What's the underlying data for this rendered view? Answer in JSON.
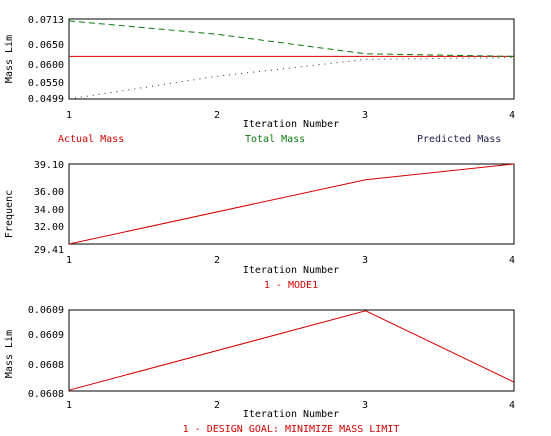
{
  "colors": {
    "red": "#d40000",
    "green": "#0a7a0a",
    "black": "#000000",
    "navy": "#202050"
  },
  "chart_data": [
    {
      "type": "line",
      "title": "",
      "xlabel": "Iteration Number",
      "ylabel": "Mass Lim",
      "xlim": [
        1,
        4
      ],
      "ylim": [
        0.0499,
        0.0713
      ],
      "x_ticks": [
        "1",
        "2",
        "3",
        "4"
      ],
      "y_ticks": [
        "0.0499",
        "0.0550",
        "0.0600",
        "0.0650",
        "0.0713"
      ],
      "legend_placement": "bottom",
      "series": [
        {
          "name": "Actual Mass",
          "color": "#d40000",
          "style": "solid",
          "x": [
            1,
            2,
            3,
            4
          ],
          "values": [
            0.0613,
            0.0613,
            0.0613,
            0.0613
          ]
        },
        {
          "name": "Total Mass",
          "color": "#0a7a0a",
          "style": "dashed",
          "x": [
            1,
            2,
            3,
            4
          ],
          "values": [
            0.0708,
            0.0672,
            0.062,
            0.0613
          ]
        },
        {
          "name": "Predicted Mass",
          "color": "#202050",
          "style": "dotted",
          "x": [
            1,
            2,
            3,
            4
          ],
          "values": [
            0.0499,
            0.056,
            0.0605,
            0.061
          ]
        }
      ]
    },
    {
      "type": "line",
      "title": "",
      "xlabel": "Iteration Number",
      "ylabel": "Frequenc",
      "xlim": [
        1,
        4
      ],
      "ylim": [
        29.41,
        39.1
      ],
      "x_ticks": [
        "1",
        "2",
        "3",
        "4"
      ],
      "y_ticks": [
        "29.41",
        "32.00",
        "34.00",
        "36.00",
        "39.10"
      ],
      "series_caption": "1 - MODE1",
      "series": [
        {
          "name": "1 - MODE1",
          "color": "#d40000",
          "style": "solid",
          "x": [
            1,
            3,
            4
          ],
          "values": [
            29.41,
            37.2,
            39.1
          ]
        }
      ]
    },
    {
      "type": "line",
      "title": "",
      "xlabel": "Iteration Number",
      "ylabel": "Mass Lim",
      "xlim": [
        1,
        4
      ],
      "ylim": [
        0.0608,
        0.0609
      ],
      "x_ticks": [
        "1",
        "2",
        "3",
        "4"
      ],
      "y_ticks": [
        "0.0608",
        "0.0608",
        "0.0609",
        "0.0609"
      ],
      "series_caption": "1 - DESIGN GOAL: MINIMIZE MASS LIMIT",
      "series": [
        {
          "name": "1 - DESIGN GOAL: MINIMIZE MASS LIMIT",
          "color": "#d40000",
          "style": "solid",
          "x": [
            1,
            3,
            4
          ],
          "values": [
            0.060801,
            0.060899,
            0.060811
          ]
        }
      ]
    }
  ]
}
